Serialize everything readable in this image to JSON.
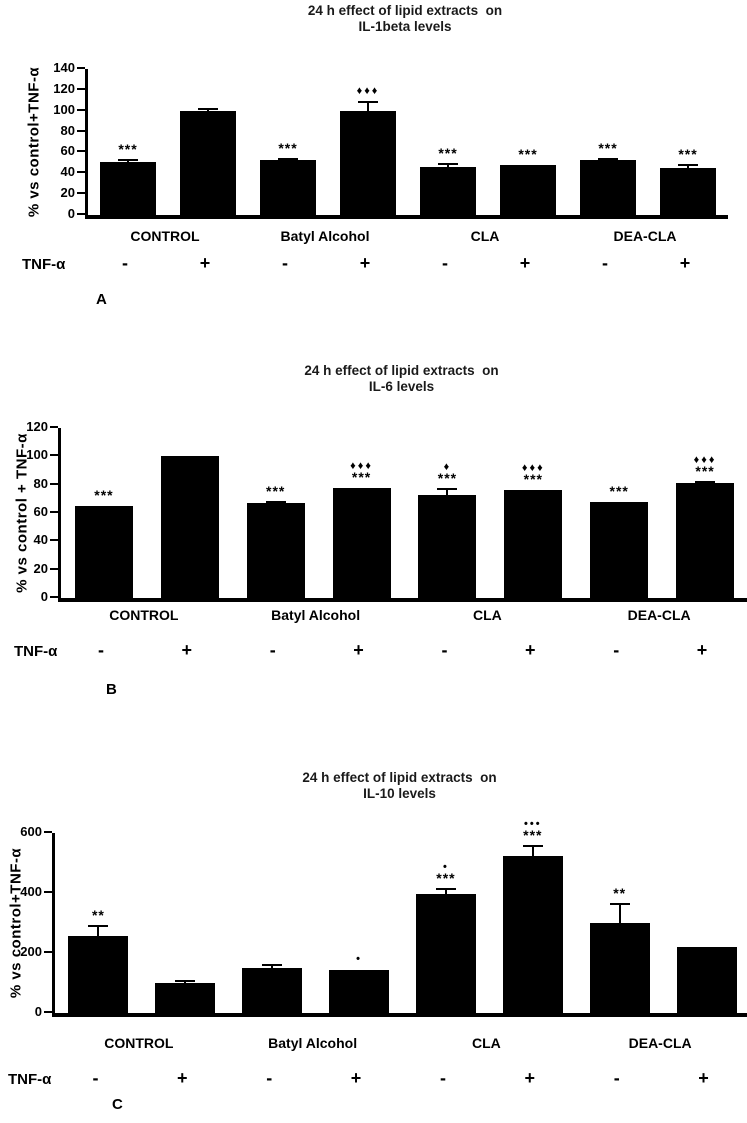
{
  "figure": {
    "background": "#ffffff",
    "bar_color": "#000000",
    "axis_color": "#000000",
    "text_color": "#000000"
  },
  "chart_data": [
    {
      "type": "bar",
      "panel_label": "A",
      "title_line1": "24 h effect of lipid extracts  on",
      "title_line2": "IL-1beta levels",
      "ylabel": "% vs control+TNF-α",
      "ylim": [
        0,
        140
      ],
      "yticks": [
        0,
        20,
        40,
        60,
        80,
        100,
        120,
        140
      ],
      "grid": false,
      "legend": "none",
      "groups": [
        "CONTROL",
        "Batyl Alcohol",
        "CLA",
        "DEA-CLA"
      ],
      "tnf_row_label": "TNF-α",
      "tnf_signs": [
        "-",
        "+",
        "-",
        "+",
        "-",
        "+",
        "-",
        "+"
      ],
      "values": [
        51,
        100,
        53,
        100,
        46,
        48,
        53,
        45
      ],
      "errors": [
        2,
        2,
        1,
        8,
        3,
        0,
        1,
        3
      ],
      "significance_top": [
        "",
        "",
        "",
        "♦♦♦",
        "",
        "",
        "",
        ""
      ],
      "significance_bottom": [
        "***",
        "",
        "***",
        "",
        "***",
        "***",
        "***",
        "***"
      ]
    },
    {
      "type": "bar",
      "panel_label": "B",
      "title_line1": "24 h effect of lipid extracts  on",
      "title_line2": "IL-6 levels",
      "ylabel": "% vs control + TNF-α",
      "ylim": [
        0,
        120
      ],
      "yticks": [
        0,
        20,
        40,
        60,
        80,
        100,
        120
      ],
      "grid": false,
      "legend": "none",
      "groups": [
        "CONTROL",
        "Batyl Alcohol",
        "CLA",
        "DEA-CLA"
      ],
      "tnf_row_label": "TNF-α",
      "tnf_signs": [
        "-",
        "+",
        "-",
        "+",
        "-",
        "+",
        "-",
        "+"
      ],
      "values": [
        65,
        100,
        67,
        78,
        73,
        76,
        68,
        81
      ],
      "errors": [
        0,
        0,
        1,
        0,
        4,
        0,
        0,
        1
      ],
      "significance_top": [
        "",
        "",
        "",
        "♦♦♦",
        "♦",
        "♦♦♦",
        "",
        "♦♦♦"
      ],
      "significance_bottom": [
        "***",
        "",
        "***",
        "***",
        "***",
        "***",
        "***",
        "***"
      ]
    },
    {
      "type": "bar",
      "panel_label": "C",
      "title_line1": "24 h effect of lipid extracts  on",
      "title_line2": "IL-10 levels",
      "ylabel": "% vs control+TNF-α",
      "ylim": [
        0,
        600
      ],
      "yticks": [
        0,
        200,
        400,
        600
      ],
      "grid": false,
      "legend": "none",
      "groups": [
        "CONTROL",
        "Batyl Alcohol",
        "CLA",
        "DEA-CLA"
      ],
      "tnf_row_label": "TNF-α",
      "tnf_signs": [
        "-",
        "+",
        "-",
        "+",
        "-",
        "+",
        "-",
        "+"
      ],
      "values": [
        258,
        100,
        150,
        145,
        398,
        523,
        300,
        220
      ],
      "errors": [
        32,
        7,
        10,
        0,
        15,
        35,
        65,
        0
      ],
      "significance_top": [
        "",
        "",
        "",
        "•",
        "•",
        "•••",
        "",
        ""
      ],
      "significance_bottom": [
        "**",
        "",
        "",
        "",
        "***",
        "***",
        "**",
        ""
      ]
    }
  ]
}
